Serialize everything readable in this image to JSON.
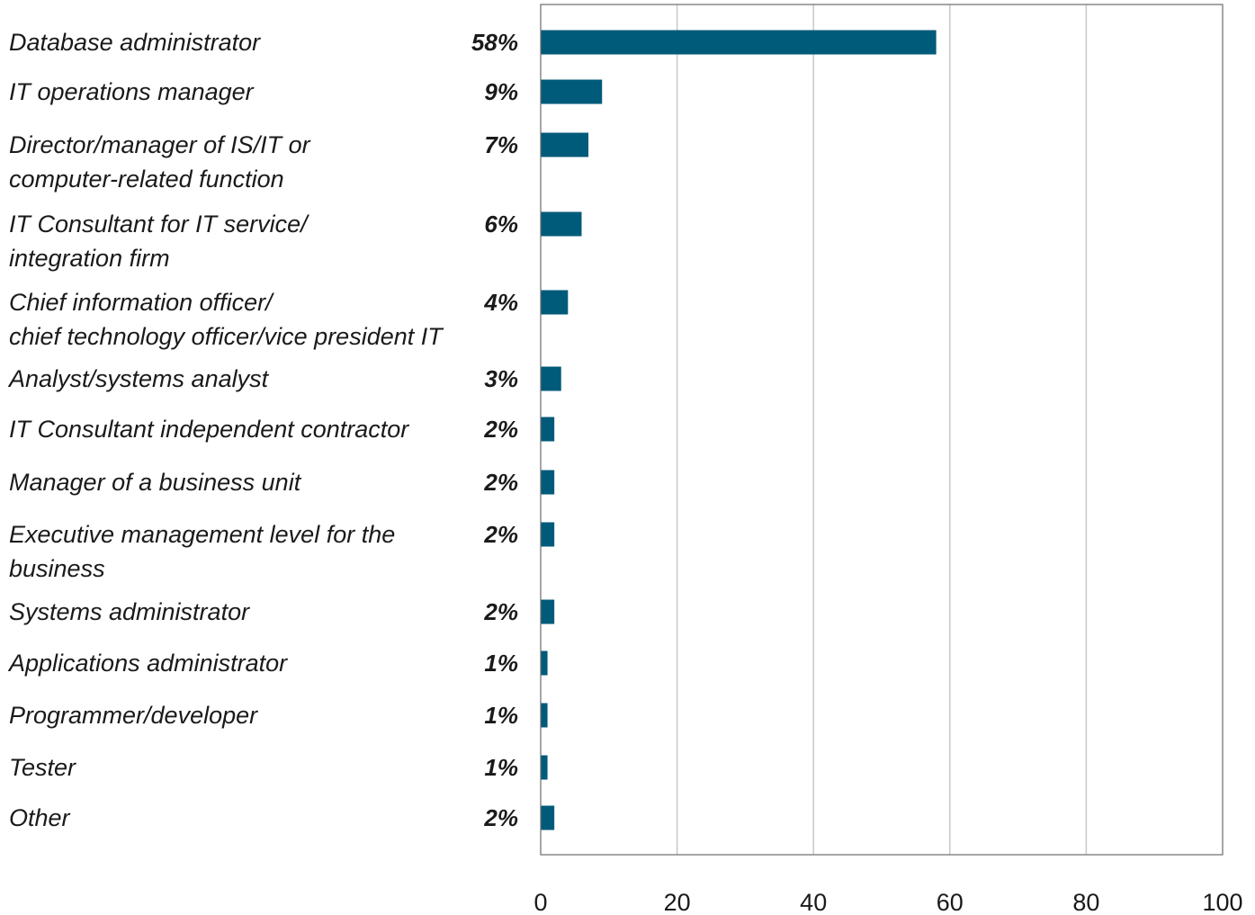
{
  "chart_data": {
    "type": "bar",
    "orientation": "horizontal",
    "bar_color": "#005a7a",
    "grid_color": "#c8c8c8",
    "grid": true,
    "xlim": [
      0,
      100
    ],
    "xticks": [
      "0",
      "20",
      "40",
      "60",
      "80",
      "100"
    ],
    "categories": [
      [
        "Database administrator"
      ],
      [
        "IT operations manager"
      ],
      [
        "Director/manager of IS/IT or",
        "computer-related function"
      ],
      [
        "IT Consultant for IT service/",
        "integration firm"
      ],
      [
        "Chief information officer/",
        "chief technology officer/vice president IT"
      ],
      [
        "Analyst/systems analyst"
      ],
      [
        "IT Consultant independent contractor"
      ],
      [
        "Manager of a business unit"
      ],
      [
        "Executive management level for the",
        "business"
      ],
      [
        "Systems administrator"
      ],
      [
        "Applications administrator"
      ],
      [
        "Programmer/developer"
      ],
      [
        "Tester"
      ],
      [
        "Other"
      ]
    ],
    "values": [
      58,
      9,
      7,
      6,
      4,
      3,
      2,
      2,
      2,
      2,
      1,
      1,
      1,
      2
    ],
    "value_labels": [
      "58%",
      "9%",
      "7%",
      "6%",
      "4%",
      "3%",
      "2%",
      "2%",
      "2%",
      "2%",
      "1%",
      "1%",
      "1%",
      "2%"
    ]
  }
}
